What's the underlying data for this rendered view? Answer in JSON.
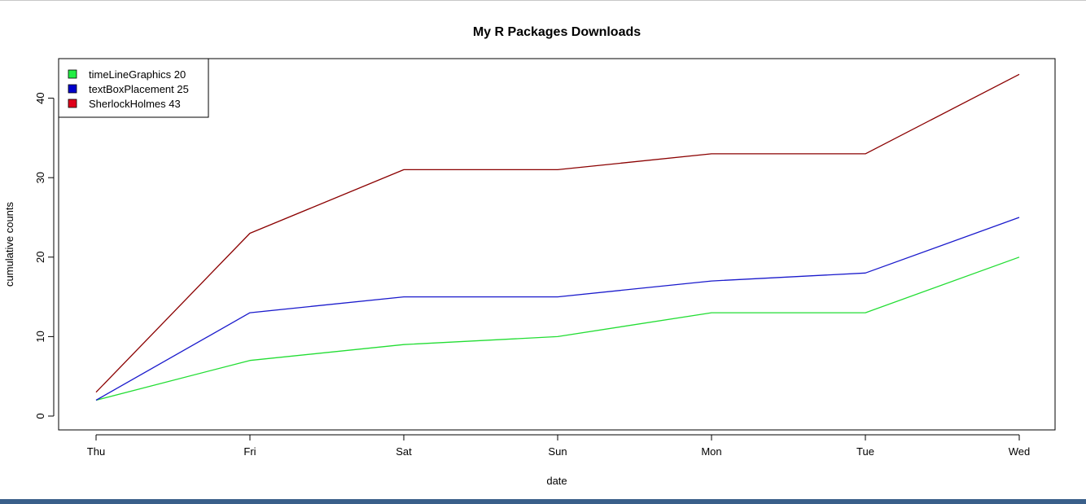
{
  "chart_data": {
    "type": "line",
    "title": "My R Packages Downloads",
    "xlabel": "date",
    "ylabel": "cumulative counts",
    "categories": [
      "Thu",
      "Fri",
      "Sat",
      "Sun",
      "Mon",
      "Tue",
      "Wed"
    ],
    "yticks": [
      0,
      10,
      20,
      30,
      40
    ],
    "ylim": [
      0,
      43
    ],
    "grid": false,
    "legend_position": "top-left",
    "series": [
      {
        "name": "SherlockHolmes 43",
        "color": "#8b0000",
        "legend_color": "#e0001a",
        "values": [
          3,
          23,
          31,
          31,
          33,
          33,
          43
        ]
      },
      {
        "name": "textBoxPlacement 25",
        "color": "#1a1acc",
        "legend_color": "#0000cc",
        "values": [
          2,
          13,
          15,
          15,
          17,
          18,
          25
        ]
      },
      {
        "name": "timeLineGraphics 20",
        "color": "#22dd33",
        "legend_color": "#22ee44",
        "values": [
          2,
          7,
          9,
          10,
          13,
          13,
          20
        ]
      }
    ],
    "legend_order": [
      "timeLineGraphics 20",
      "textBoxPlacement 25",
      "SherlockHolmes 43"
    ]
  }
}
